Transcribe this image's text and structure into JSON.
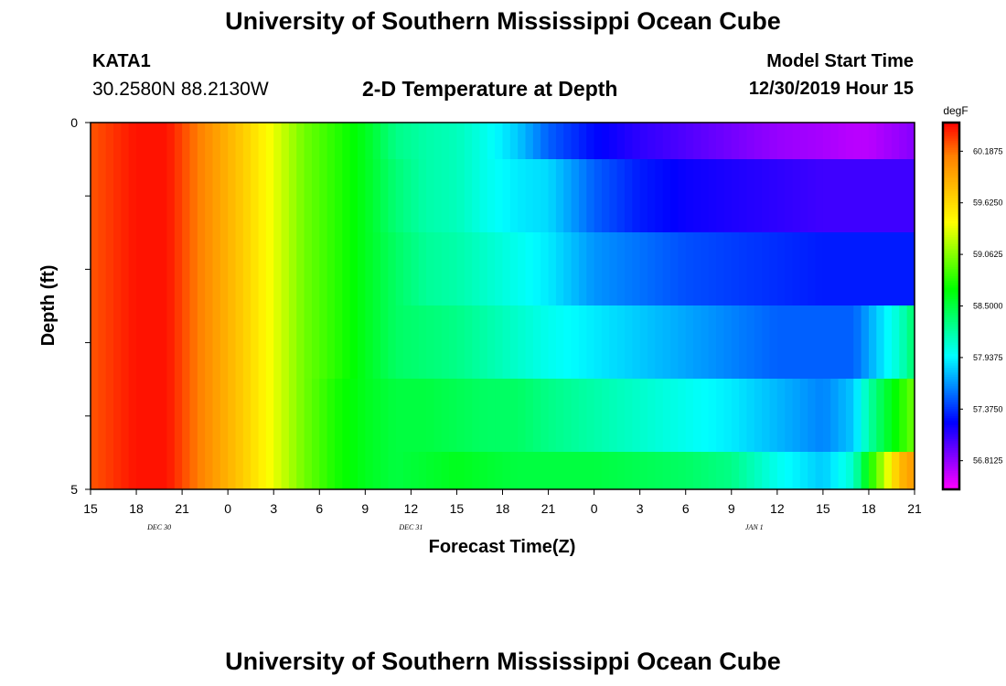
{
  "header": {
    "title": "University of Southern Mississippi Ocean Cube",
    "station_id": "KATA1",
    "coordinates": "30.2580N 88.2130W",
    "subtitle": "2-D Temperature at Depth",
    "model_start_label": "Model Start Time",
    "model_start_value": "12/30/2019 Hour 15"
  },
  "footer": {
    "title": "University of Southern Mississippi Ocean Cube"
  },
  "chart_data": {
    "type": "heatmap",
    "title": "2-D Temperature at Depth",
    "xlabel": "Forecast Time(Z)",
    "ylabel": "Depth (ft)",
    "colorbar_label": "degF",
    "x_ticks": [
      "15",
      "18",
      "21",
      "0",
      "3",
      "6",
      "9",
      "12",
      "15",
      "18",
      "21",
      "0",
      "3",
      "6",
      "9",
      "12",
      "15",
      "18",
      "21"
    ],
    "day_labels": [
      {
        "label": "DEC  30",
        "tick_index": 1.5
      },
      {
        "label": "DEC  31",
        "tick_index": 7
      },
      {
        "label": "JAN  1",
        "tick_index": 14.5
      }
    ],
    "y_ticks": [
      "0",
      "5"
    ],
    "ylim": [
      0,
      5
    ],
    "time_range_hours": [
      0,
      54
    ],
    "color_range": [
      56.5,
      60.5
    ],
    "colorbar_ticks": [
      "60.1875",
      "59.6250",
      "59.0625",
      "58.5000",
      "57.9375",
      "57.3750",
      "56.8125"
    ],
    "colormap": [
      "#ff00ff",
      "#8000ff",
      "#0000ff",
      "#0080ff",
      "#00ffff",
      "#00ff80",
      "#00ff00",
      "#80ff00",
      "#ffff00",
      "#ffc000",
      "#ff8000",
      "#ff0000"
    ],
    "depths_ft": [
      0.5,
      1.5,
      2.5,
      3.5,
      4.5
    ],
    "time_keypoints_hours": [
      0,
      3,
      5,
      8,
      10,
      12,
      14,
      16,
      18,
      20,
      22,
      24,
      26,
      28,
      30,
      33,
      36,
      39,
      42,
      45,
      48,
      50,
      51,
      52,
      53,
      54
    ],
    "temperature_rows": [
      [
        60.26,
        60.45,
        60.45,
        60.0,
        59.7,
        59.35,
        59.0,
        58.8,
        58.6,
        58.3,
        58.2,
        58.15,
        58.0,
        57.8,
        57.5,
        57.25,
        57.1,
        57.0,
        56.9,
        56.8,
        56.75,
        56.7,
        56.7,
        56.75,
        56.8,
        56.85
      ],
      [
        60.26,
        60.45,
        60.45,
        60.0,
        59.7,
        59.35,
        59.0,
        58.8,
        58.6,
        58.35,
        58.2,
        58.15,
        58.0,
        57.9,
        57.85,
        57.5,
        57.3,
        57.2,
        57.15,
        57.1,
        57.05,
        57.05,
        57.05,
        57.05,
        57.05,
        57.05
      ],
      [
        60.26,
        60.45,
        60.45,
        60.0,
        59.7,
        59.35,
        59.0,
        58.8,
        58.6,
        58.4,
        58.25,
        58.2,
        58.1,
        58.0,
        57.9,
        57.65,
        57.55,
        57.45,
        57.4,
        57.35,
        57.3,
        57.3,
        57.3,
        57.3,
        57.3,
        57.3
      ],
      [
        60.26,
        60.45,
        60.45,
        60.0,
        59.7,
        59.35,
        59.0,
        58.8,
        58.6,
        58.4,
        58.35,
        58.3,
        58.2,
        58.1,
        58.0,
        57.9,
        57.8,
        57.7,
        57.6,
        57.5,
        57.5,
        57.5,
        57.7,
        57.9,
        58.1,
        58.4
      ],
      [
        60.26,
        60.45,
        60.45,
        60.0,
        59.7,
        59.35,
        59.0,
        58.75,
        58.6,
        58.5,
        58.5,
        58.45,
        58.4,
        58.4,
        58.3,
        58.2,
        58.1,
        58.0,
        57.9,
        57.75,
        57.6,
        57.8,
        58.2,
        58.5,
        58.75,
        59.0
      ]
    ],
    "bottom_row": [
      60.26,
      60.45,
      60.45,
      60.0,
      59.7,
      59.35,
      59.0,
      58.75,
      58.6,
      58.5,
      58.55,
      58.6,
      58.55,
      58.5,
      58.5,
      58.5,
      58.45,
      58.4,
      58.3,
      58.0,
      57.8,
      58.1,
      58.7,
      59.2,
      59.8,
      60.0
    ]
  }
}
